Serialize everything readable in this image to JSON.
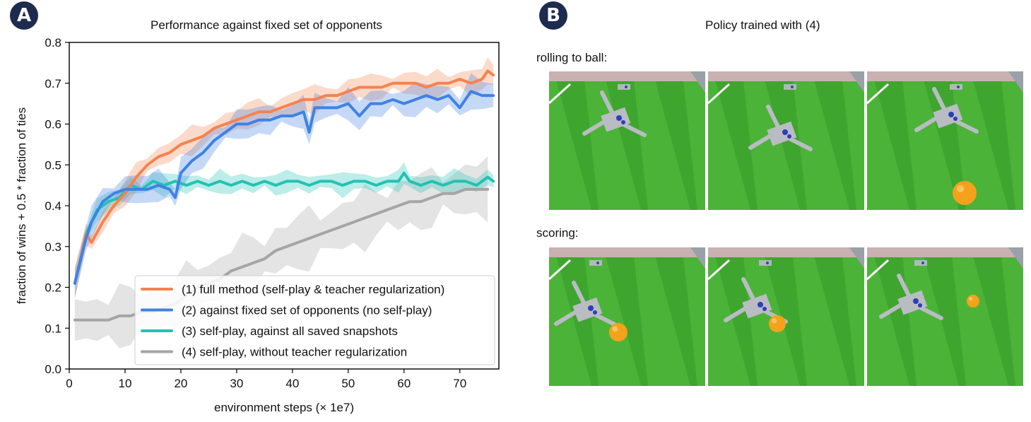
{
  "panel_a": {
    "badge": "A",
    "chart_data": {
      "type": "line",
      "title": "Performance against fixed set of opponents",
      "xlabel": "environment steps (× 1e7)",
      "ylabel": "fraction of wins + 0.5 * fraction of ties",
      "xlim": [
        0,
        77
      ],
      "ylim": [
        0.0,
        0.8
      ],
      "xticks": [
        "0",
        "10",
        "20",
        "30",
        "40",
        "50",
        "60",
        "70"
      ],
      "yticks": [
        "0.0",
        "0.1",
        "0.2",
        "0.3",
        "0.4",
        "0.5",
        "0.6",
        "0.7",
        "0.8"
      ],
      "grid": false,
      "legend_position": "bottom-right",
      "series": [
        {
          "name": "(1) full method (self-play & teacher regularization)",
          "color": "#f4834f",
          "band": 0.025,
          "x": [
            1,
            3,
            4,
            6,
            8,
            10,
            12,
            14,
            16,
            18,
            20,
            22,
            24,
            26,
            28,
            30,
            32,
            34,
            36,
            38,
            40,
            42,
            44,
            46,
            48,
            50,
            52,
            54,
            56,
            58,
            60,
            62,
            64,
            66,
            68,
            70,
            72,
            74,
            75,
            76
          ],
          "y": [
            0.21,
            0.33,
            0.31,
            0.36,
            0.4,
            0.43,
            0.47,
            0.5,
            0.52,
            0.53,
            0.55,
            0.56,
            0.57,
            0.59,
            0.6,
            0.61,
            0.62,
            0.63,
            0.63,
            0.64,
            0.65,
            0.66,
            0.66,
            0.67,
            0.67,
            0.68,
            0.69,
            0.69,
            0.69,
            0.7,
            0.7,
            0.7,
            0.69,
            0.7,
            0.7,
            0.71,
            0.7,
            0.71,
            0.73,
            0.72
          ]
        },
        {
          "name": "(2) against fixed set of opponents (no self-play)",
          "color": "#3f82e5",
          "band": 0.03,
          "x": [
            1,
            3,
            4,
            6,
            8,
            10,
            12,
            14,
            16,
            18,
            19,
            20,
            22,
            24,
            26,
            28,
            30,
            32,
            34,
            36,
            38,
            40,
            42,
            43,
            44,
            46,
            48,
            50,
            52,
            54,
            56,
            58,
            60,
            62,
            64,
            66,
            68,
            70,
            72,
            74,
            76
          ],
          "y": [
            0.21,
            0.32,
            0.36,
            0.41,
            0.43,
            0.44,
            0.44,
            0.44,
            0.45,
            0.44,
            0.42,
            0.48,
            0.51,
            0.53,
            0.56,
            0.58,
            0.6,
            0.6,
            0.61,
            0.61,
            0.62,
            0.62,
            0.63,
            0.58,
            0.64,
            0.64,
            0.64,
            0.65,
            0.62,
            0.65,
            0.65,
            0.66,
            0.65,
            0.66,
            0.67,
            0.66,
            0.67,
            0.64,
            0.68,
            0.67,
            0.67
          ]
        },
        {
          "name": "(3) self-play, against all saved snapshots",
          "color": "#22c2b3",
          "band": 0.02,
          "x": [
            1,
            3,
            5,
            7,
            9,
            11,
            13,
            15,
            17,
            19,
            21,
            23,
            25,
            27,
            29,
            31,
            33,
            35,
            37,
            39,
            41,
            43,
            45,
            47,
            49,
            51,
            53,
            55,
            57,
            59,
            60,
            61,
            63,
            65,
            67,
            69,
            71,
            73,
            75,
            76
          ],
          "y": [
            0.21,
            0.33,
            0.39,
            0.41,
            0.42,
            0.45,
            0.44,
            0.46,
            0.45,
            0.46,
            0.45,
            0.46,
            0.45,
            0.46,
            0.45,
            0.46,
            0.45,
            0.46,
            0.45,
            0.46,
            0.46,
            0.45,
            0.46,
            0.46,
            0.45,
            0.46,
            0.46,
            0.45,
            0.46,
            0.46,
            0.48,
            0.46,
            0.45,
            0.46,
            0.45,
            0.46,
            0.46,
            0.45,
            0.47,
            0.46
          ]
        },
        {
          "name": "(4) self-play, without teacher regularization",
          "color": "#a5a5a5",
          "band": 0.055,
          "x": [
            1,
            3,
            5,
            7,
            9,
            11,
            13,
            15,
            17,
            19,
            21,
            23,
            25,
            27,
            29,
            31,
            33,
            35,
            37,
            39,
            41,
            43,
            45,
            47,
            49,
            51,
            53,
            55,
            57,
            59,
            61,
            63,
            65,
            67,
            69,
            71,
            73,
            75
          ],
          "y": [
            0.12,
            0.12,
            0.12,
            0.12,
            0.13,
            0.13,
            0.14,
            0.14,
            0.15,
            0.16,
            0.18,
            0.2,
            0.21,
            0.22,
            0.24,
            0.25,
            0.26,
            0.27,
            0.29,
            0.3,
            0.31,
            0.32,
            0.33,
            0.34,
            0.35,
            0.36,
            0.37,
            0.38,
            0.39,
            0.4,
            0.41,
            0.41,
            0.42,
            0.43,
            0.43,
            0.44,
            0.44,
            0.44
          ]
        }
      ]
    }
  },
  "panel_b": {
    "badge": "B",
    "title": "Policy trained with (4)",
    "rows": [
      {
        "label": "rolling to ball:",
        "frames": [
          {
            "ball": false,
            "ball_color": "#f4a11c"
          },
          {
            "ball": false,
            "ball_color": "#f4a11c"
          },
          {
            "ball": true,
            "ball_color": "#f4a11c"
          }
        ]
      },
      {
        "label": "scoring:",
        "frames": [
          {
            "ball": true,
            "ball_color": "#f4a11c"
          },
          {
            "ball": true,
            "ball_color": "#f4a11c"
          },
          {
            "ball": true,
            "ball_color": "#f4a11c"
          }
        ]
      }
    ],
    "colors": {
      "pitch": "#3ea52e",
      "stripe": "#57c043",
      "wall": "#c9b1b1",
      "robot": "#b9bcc3",
      "robot_accent": "#2a3fb8",
      "ball": "#f4a11c"
    }
  }
}
